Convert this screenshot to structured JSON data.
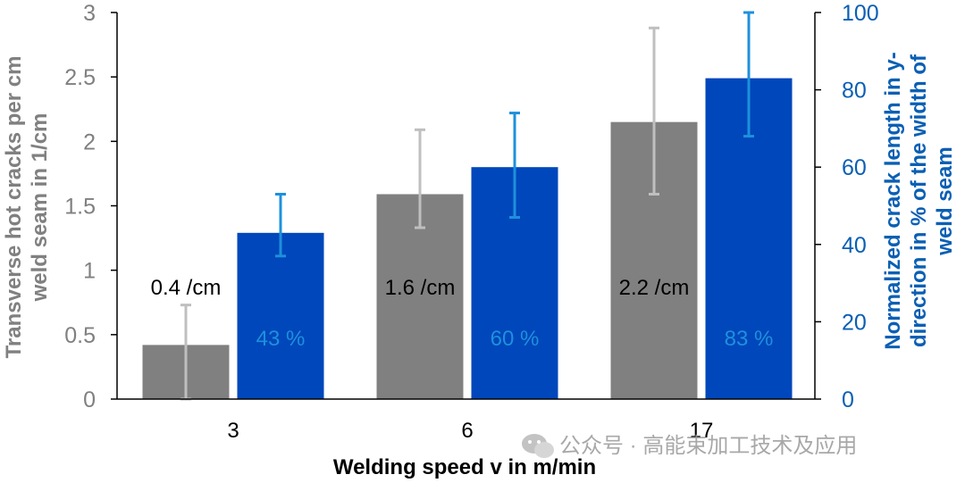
{
  "chart_data": {
    "type": "bar",
    "categories": [
      "3",
      "6",
      "17"
    ],
    "xlabel": "Welding speed v in m/min",
    "ylabel_left": "Transverse hot cracks per cm weld seam in 1/cm",
    "ylabel_right": "Normalized crack length in y-direction in % of the width of weld seam",
    "ylim_left": [
      0,
      3
    ],
    "ylim_right": [
      0,
      100
    ],
    "yticks_left": [
      "0",
      "0.5",
      "1",
      "1.5",
      "2",
      "2.5",
      "3"
    ],
    "yticks_right": [
      "0",
      "20",
      "40",
      "60",
      "80",
      "100"
    ],
    "grid": false,
    "colors": {
      "left_series": "#808080",
      "left_error": "#bfbfbf",
      "right_series": "#0047bb",
      "right_error": "#1e90dc",
      "left_axis_text": "#808080",
      "right_axis_text": "#0a5fb4",
      "right_bar_label": "#1e90dc"
    },
    "series": [
      {
        "axis": "left",
        "values": [
          0.42,
          1.59,
          2.15
        ],
        "err_low": [
          0.0,
          1.33,
          1.59
        ],
        "err_high": [
          0.73,
          2.09,
          2.88
        ],
        "labels": [
          "0.4 /cm",
          "1.6 /cm",
          "2.2 /cm"
        ]
      },
      {
        "axis": "right",
        "values": [
          43,
          60,
          83
        ],
        "err_low": [
          37,
          47,
          68
        ],
        "err_high": [
          53,
          74,
          100
        ],
        "labels": [
          "43 %",
          "60 %",
          "83 %"
        ]
      }
    ]
  },
  "watermark": {
    "icon": "wechat-icon",
    "text": "公众号 · 高能束加工技术及应用"
  }
}
